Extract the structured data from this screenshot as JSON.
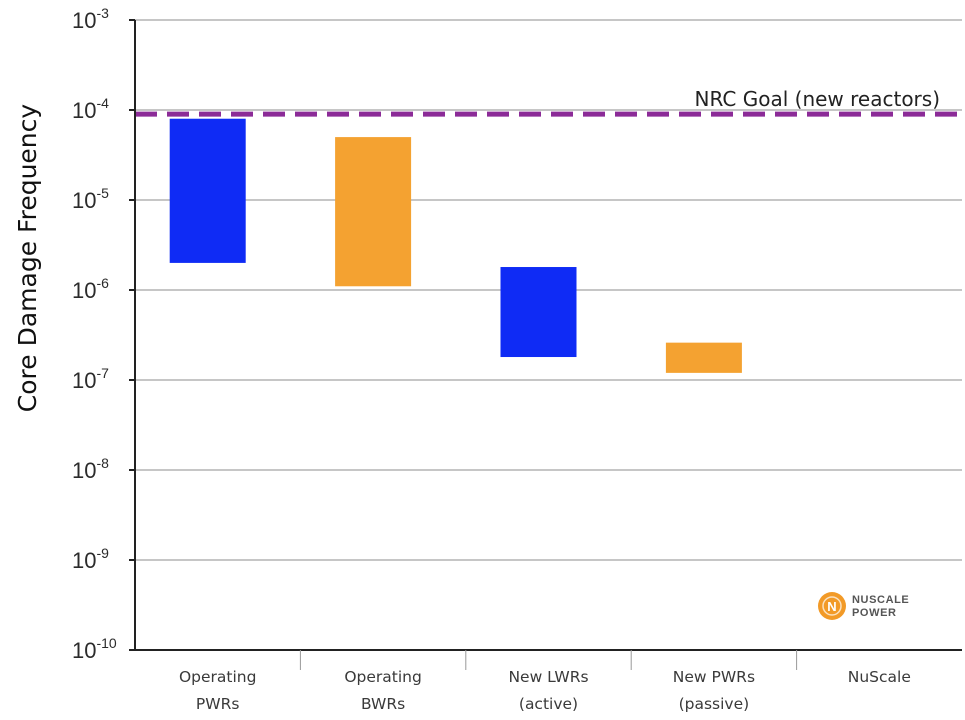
{
  "chart_data": {
    "type": "bar",
    "subtype": "floating-range",
    "ylabel": "Core Damage Frequency",
    "yscale": "log",
    "ylim": [
      1e-10,
      0.001
    ],
    "y_ticks": [
      {
        "base": "10",
        "exp": "-3",
        "value": 0.001
      },
      {
        "base": "10",
        "exp": "-4",
        "value": 0.0001
      },
      {
        "base": "10",
        "exp": "-5",
        "value": 1e-05
      },
      {
        "base": "10",
        "exp": "-6",
        "value": 1e-06
      },
      {
        "base": "10",
        "exp": "-7",
        "value": 1e-07
      },
      {
        "base": "10",
        "exp": "-8",
        "value": 1e-08
      },
      {
        "base": "10",
        "exp": "-9",
        "value": 1e-09
      },
      {
        "base": "10",
        "exp": "-10",
        "value": 1e-10
      }
    ],
    "grid": true,
    "categories": [
      {
        "lines": [
          "Operating",
          "PWRs"
        ]
      },
      {
        "lines": [
          "Operating",
          "BWRs"
        ]
      },
      {
        "lines": [
          "New LWRs",
          "(active)"
        ]
      },
      {
        "lines": [
          "New PWRs",
          "(passive)"
        ]
      },
      {
        "lines": [
          "NuScale"
        ]
      }
    ],
    "ranges": [
      {
        "low": 2e-06,
        "high": 8e-05,
        "color": "#0f2bf5"
      },
      {
        "low": 1.1e-06,
        "high": 5e-05,
        "color": "#f4a231"
      },
      {
        "low": 1.8e-07,
        "high": 1.8e-06,
        "color": "#0f2bf5"
      },
      {
        "low": 1.2e-07,
        "high": 2.6e-07,
        "color": "#f4a231"
      },
      null
    ],
    "reference_line": {
      "label": "NRC Goal (new reactors)",
      "value": 9e-05,
      "color": "#8b2b97",
      "style": "dashed"
    }
  },
  "logo": {
    "line1": "NuScale",
    "line2": "Power",
    "mark": "N",
    "color": "#f29a27"
  }
}
